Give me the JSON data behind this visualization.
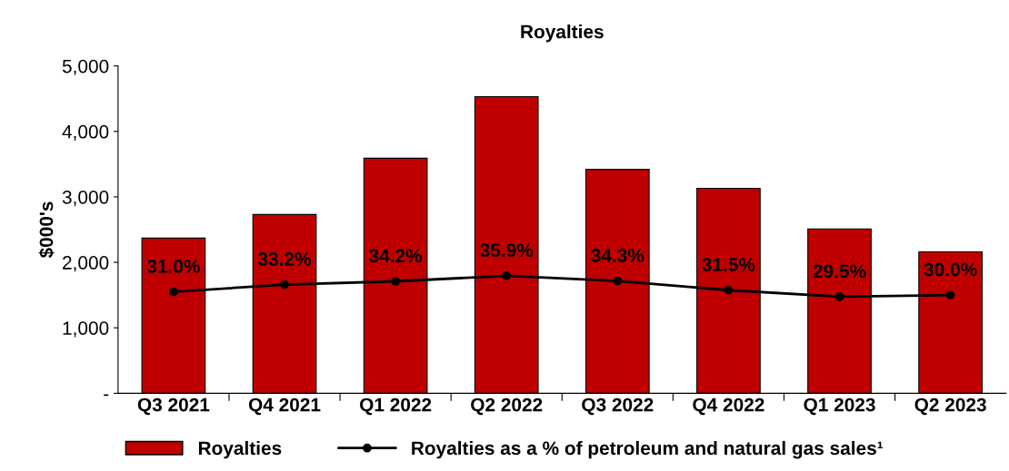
{
  "chart_data": {
    "type": "bar",
    "title": "Royalties",
    "ylabel": "$000's",
    "categories": [
      "Q3 2021",
      "Q4 2021",
      "Q1 2022",
      "Q2 2022",
      "Q3 2022",
      "Q4 2022",
      "Q1 2023",
      "Q2 2023"
    ],
    "series": [
      {
        "name": "Royalties",
        "color": "#c00000",
        "values": [
          2370,
          2730,
          3590,
          4530,
          3420,
          3130,
          2510,
          2160
        ]
      },
      {
        "name": "Royalties as a % of petroleum and natural gas sales¹",
        "type": "line",
        "axis": "y2",
        "color": "#000000",
        "marker": "circle",
        "values": [
          31.0,
          33.2,
          34.2,
          35.9,
          34.3,
          31.5,
          29.5,
          30.0
        ],
        "value_labels": [
          "31.0%",
          "33.2%",
          "34.2%",
          "35.9%",
          "34.3%",
          "31.5%",
          "29.5%",
          "30.0%"
        ]
      }
    ],
    "ylim": [
      0,
      5000
    ],
    "yticks": [
      {
        "value": 0,
        "label": "-"
      },
      {
        "value": 1000,
        "label": "1,000"
      },
      {
        "value": 2000,
        "label": "2,000"
      },
      {
        "value": 3000,
        "label": "3,000"
      },
      {
        "value": 4000,
        "label": "4,000"
      },
      {
        "value": 5000,
        "label": "5,000"
      }
    ],
    "y2lim": [
      0,
      100
    ],
    "tick_labels": "xy",
    "grid": false,
    "legend": "bottom"
  }
}
